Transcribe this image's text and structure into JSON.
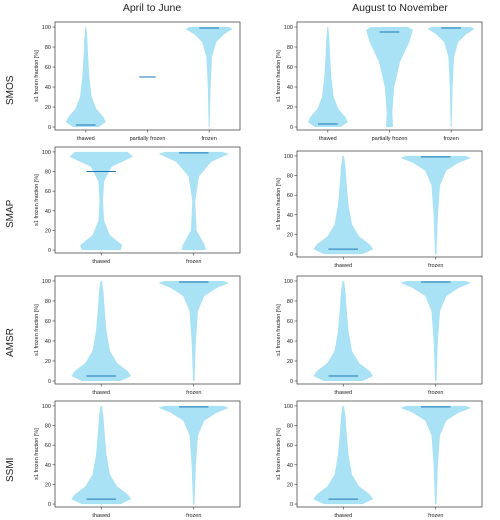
{
  "column_titles": [
    "April to June",
    "August to November"
  ],
  "row_titles": [
    "SMOS",
    "SMAP",
    "AMSR",
    "SSMI"
  ],
  "colors": {
    "violin": "#a9e1f5",
    "median": "#1f77b4"
  },
  "chart_data": [
    {
      "type": "violin",
      "dataset": "SMOS",
      "period": "April to June",
      "categories": [
        "thawed",
        "partially frozen",
        "frozen"
      ],
      "medians": [
        2,
        50,
        99
      ],
      "ylabel": "s1 frozen fraction [%]",
      "ylim": [
        -3,
        105
      ],
      "yticks": [
        0,
        20,
        40,
        60,
        80,
        100
      ]
    },
    {
      "type": "violin",
      "dataset": "SMOS",
      "period": "August to November",
      "categories": [
        "thawed",
        "partially frozen",
        "frozen"
      ],
      "medians": [
        3,
        95,
        99
      ],
      "ylabel": "s1 frozen fraction [%]",
      "ylim": [
        -3,
        105
      ],
      "yticks": [
        0,
        20,
        40,
        60,
        80,
        100
      ]
    },
    {
      "type": "violin",
      "dataset": "SMAP",
      "period": "April to June",
      "categories": [
        "thawed",
        "frozen"
      ],
      "medians": [
        80,
        99
      ],
      "ylabel": "s1 frozen fraction [%]",
      "ylim": [
        -3,
        105
      ],
      "yticks": [
        0,
        20,
        40,
        60,
        80,
        100
      ]
    },
    {
      "type": "violin",
      "dataset": "SMAP",
      "period": "August to November",
      "categories": [
        "thawed",
        "frozen"
      ],
      "medians": [
        5,
        99
      ],
      "ylabel": "s1 frozen fraction [%]",
      "ylim": [
        -3,
        105
      ],
      "yticks": [
        0,
        20,
        40,
        60,
        80,
        100
      ]
    },
    {
      "type": "violin",
      "dataset": "AMSR",
      "period": "April to June",
      "categories": [
        "thawed",
        "frozen"
      ],
      "medians": [
        5,
        99
      ],
      "ylabel": "s1 frozen fraction [%]",
      "ylim": [
        -3,
        105
      ],
      "yticks": [
        0,
        20,
        40,
        60,
        80,
        100
      ]
    },
    {
      "type": "violin",
      "dataset": "AMSR",
      "period": "August to November",
      "categories": [
        "thawed",
        "frozen"
      ],
      "medians": [
        5,
        99
      ],
      "ylabel": "s1 frozen fraction [%]",
      "ylim": [
        -3,
        105
      ],
      "yticks": [
        0,
        20,
        40,
        60,
        80,
        100
      ]
    },
    {
      "type": "violin",
      "dataset": "SSMI",
      "period": "April to June",
      "categories": [
        "thawed",
        "frozen"
      ],
      "medians": [
        5,
        99
      ],
      "ylabel": "s1 frozen fraction [%]",
      "ylim": [
        -3,
        105
      ],
      "yticks": [
        0,
        20,
        40,
        60,
        80,
        100
      ]
    },
    {
      "type": "violin",
      "dataset": "SSMI",
      "period": "August to November",
      "categories": [
        "thawed",
        "frozen"
      ],
      "medians": [
        5,
        99
      ],
      "ylabel": "s1 frozen fraction [%]",
      "ylim": [
        -3,
        105
      ],
      "yticks": [
        0,
        20,
        40,
        60,
        80,
        100
      ]
    }
  ]
}
